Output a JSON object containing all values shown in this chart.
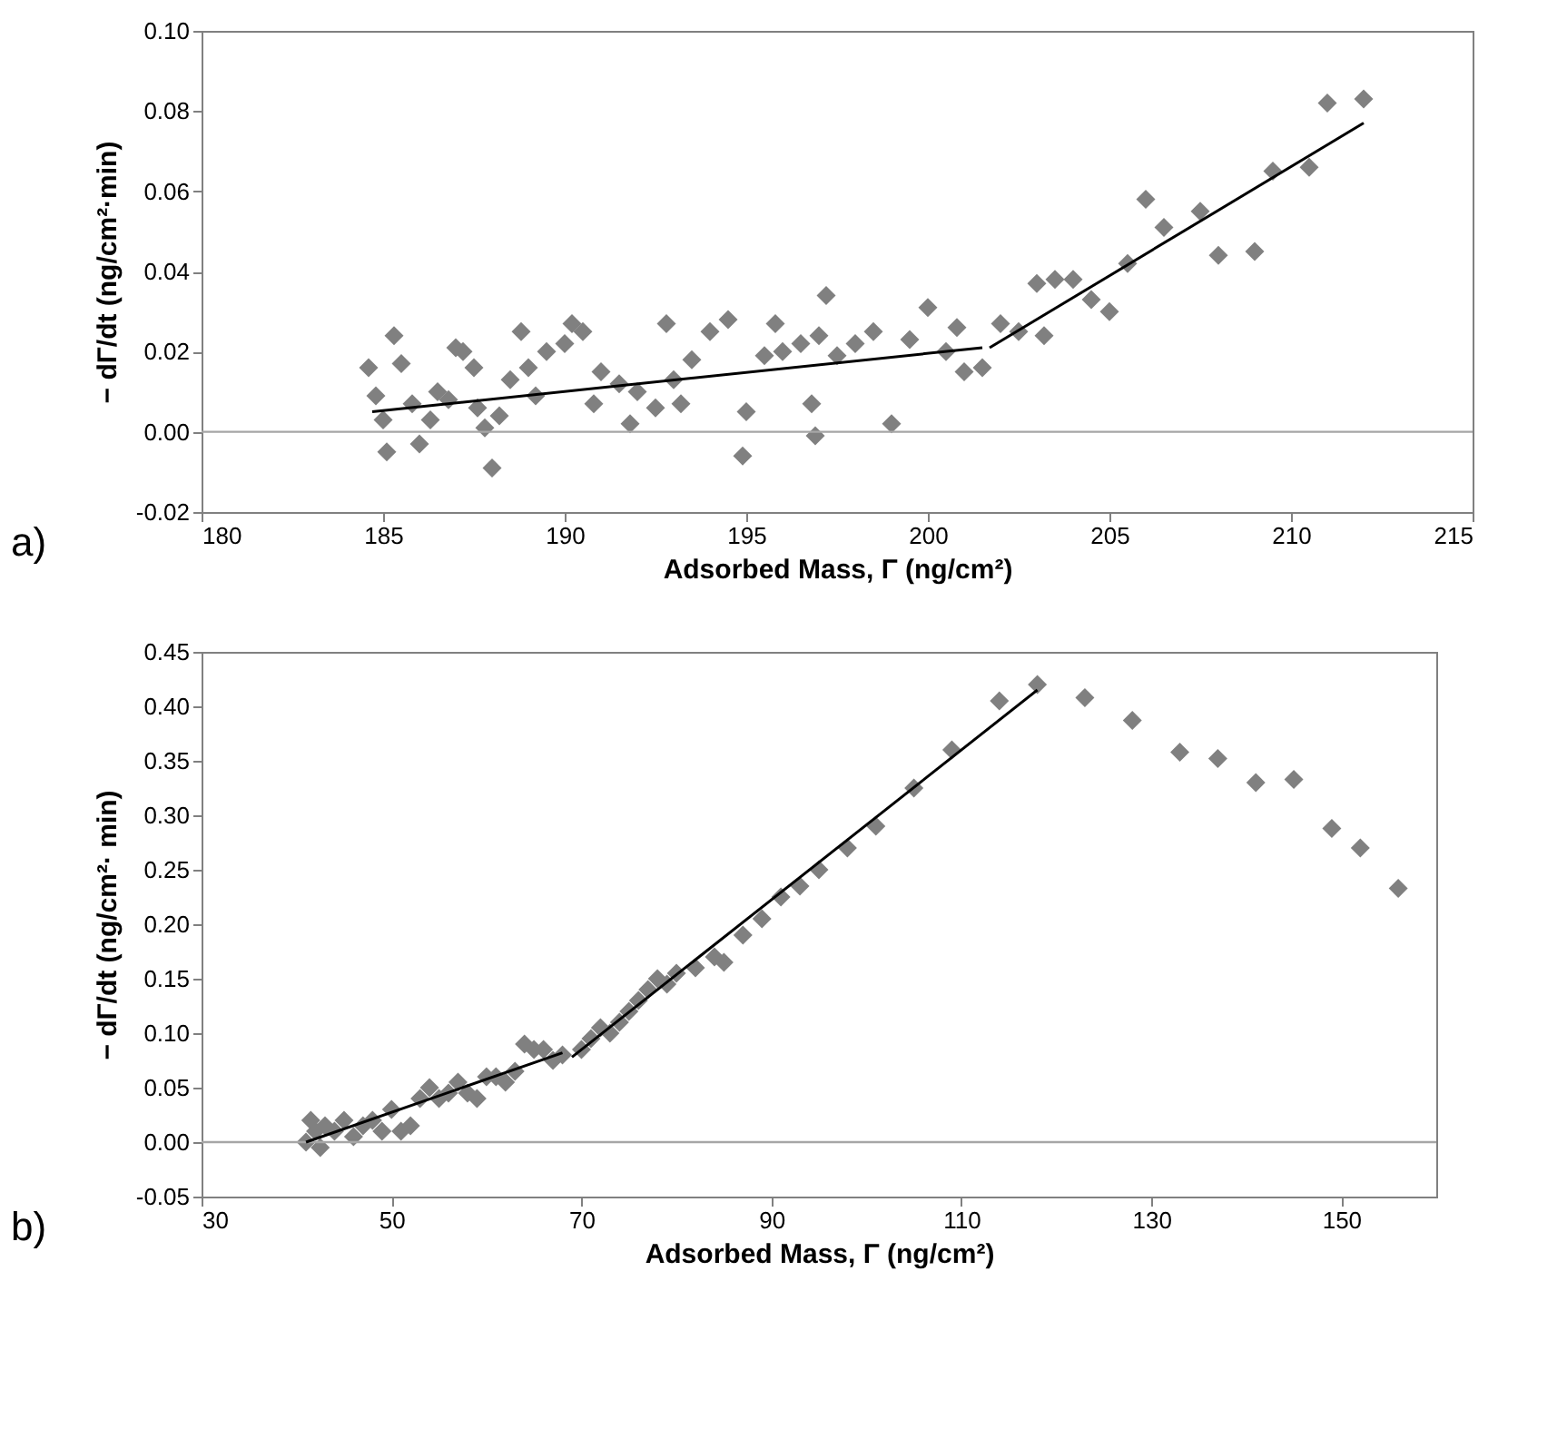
{
  "chart_data": [
    {
      "type": "scatter",
      "xlabel": "Adsorbed Mass, Γ (ng/cm²)",
      "ylabel": "− dΓ/dt (ng/cm²·min)",
      "annotations": [
        "a)"
      ],
      "xlim": [
        180,
        215
      ],
      "xticks": [
        180,
        185,
        190,
        195,
        200,
        205,
        210,
        215
      ],
      "ylim": [
        -0.02,
        0.1
      ],
      "yticks": [
        {
          "value": -0.02,
          "label": "-0.02"
        },
        {
          "value": 0,
          "label": "0.00"
        },
        {
          "value": 0.02,
          "label": "0.02"
        },
        {
          "value": 0.04,
          "label": "0.04"
        },
        {
          "value": 0.06,
          "label": "0.06"
        },
        {
          "value": 0.08,
          "label": "0.08"
        },
        {
          "value": 0.1,
          "label": "0.10"
        }
      ],
      "grid": false,
      "ref_lines": [
        {
          "axis": "y",
          "value": 0,
          "label": null,
          "color": "#a6a6a6"
        }
      ],
      "series": [
        {
          "type": "scatter",
          "marker": "diamond",
          "color": "#808080",
          "x": [
            211,
            212,
            210.5,
            209.5,
            207.5,
            206.5,
            206,
            208,
            209,
            205.5,
            204.5,
            205,
            204,
            203.5,
            203,
            202.5,
            203.2,
            202,
            201.5,
            201,
            200.5,
            200.8,
            200,
            199.5,
            199,
            198.5,
            198,
            197.5,
            197.2,
            197,
            196.5,
            196,
            195.8,
            195.5,
            195,
            194.9,
            194.5,
            194,
            193.5,
            193,
            192.8,
            192.5,
            192,
            191.8,
            191.5,
            191,
            190.8,
            190.5,
            190.2,
            190,
            189.5,
            189,
            188.8,
            188.5,
            188.2,
            188,
            187.8,
            187.5,
            187.2,
            187,
            186.5,
            186.3,
            186,
            185.8,
            185.5,
            185.3,
            185,
            185.1,
            184.8,
            184.6,
            186.8,
            187.6,
            189.2,
            193.2,
            196.8,
            196.9
          ],
          "values": [
            0.082,
            0.083,
            0.066,
            0.065,
            0.055,
            0.051,
            0.058,
            0.044,
            0.045,
            0.042,
            0.033,
            0.03,
            0.038,
            0.038,
            0.037,
            0.025,
            0.024,
            0.027,
            0.016,
            0.015,
            0.02,
            0.026,
            0.031,
            0.023,
            0.002,
            0.025,
            0.022,
            0.019,
            0.034,
            0.024,
            0.022,
            0.02,
            0.027,
            0.019,
            0.005,
            -0.006,
            0.028,
            0.025,
            0.018,
            0.013,
            0.027,
            0.006,
            0.01,
            0.002,
            0.012,
            0.015,
            0.007,
            0.025,
            0.027,
            0.022,
            0.02,
            0.016,
            0.025,
            0.013,
            0.004,
            -0.009,
            0.001,
            0.016,
            0.02,
            0.021,
            0.01,
            0.003,
            -0.003,
            0.007,
            0.017,
            0.024,
            0.003,
            -0.005,
            0.009,
            0.016,
            0.008,
            0.006,
            0.009,
            0.007,
            0.007,
            -0.001
          ]
        },
        {
          "type": "line",
          "marker": "none",
          "color": "#000000",
          "x": [
            184.7,
            201.5
          ],
          "values": [
            0.005,
            0.021
          ]
        },
        {
          "type": "line",
          "marker": "none",
          "color": "#000000",
          "x": [
            201.7,
            212
          ],
          "values": [
            0.021,
            0.077
          ]
        }
      ]
    },
    {
      "type": "scatter",
      "xlabel": "Adsorbed Mass, Γ (ng/cm²)",
      "ylabel": "− dΓ/dt (ng/cm²· min)",
      "annotations": [
        "b)"
      ],
      "xlim": [
        30,
        160
      ],
      "xticks": [
        30,
        50,
        70,
        90,
        110,
        130,
        150
      ],
      "ylim": [
        -0.05,
        0.45
      ],
      "yticks": [
        {
          "value": -0.05,
          "label": "-0.05"
        },
        {
          "value": 0,
          "label": "0.00"
        },
        {
          "value": 0.05,
          "label": "0.05"
        },
        {
          "value": 0.1,
          "label": "0.10"
        },
        {
          "value": 0.15,
          "label": "0.15"
        },
        {
          "value": 0.2,
          "label": "0.20"
        },
        {
          "value": 0.25,
          "label": "0.25"
        },
        {
          "value": 0.3,
          "label": "0.30"
        },
        {
          "value": 0.35,
          "label": "0.35"
        },
        {
          "value": 0.4,
          "label": "0.40"
        },
        {
          "value": 0.45,
          "label": "0.45"
        }
      ],
      "grid": false,
      "ref_lines": [
        {
          "axis": "y",
          "value": 0,
          "label": null,
          "color": "#a6a6a6"
        }
      ],
      "series": [
        {
          "type": "scatter",
          "marker": "diamond",
          "color": "#808080",
          "x": [
            41,
            41.5,
            42,
            42.5,
            43,
            44,
            45,
            46,
            47,
            48,
            49,
            50,
            51,
            52,
            53,
            54,
            55,
            56,
            57,
            58,
            59,
            60,
            61,
            62,
            63,
            64,
            65,
            66,
            67,
            68,
            70,
            71,
            72,
            73,
            74,
            75,
            76,
            77,
            78,
            79,
            80,
            82,
            84,
            85,
            87,
            89,
            91,
            93,
            95,
            98,
            101,
            105,
            109,
            114,
            118,
            123,
            128,
            133,
            137,
            141,
            145,
            149,
            152,
            156
          ],
          "values": [
            0.0,
            0.02,
            0.01,
            -0.005,
            0.015,
            0.01,
            0.02,
            0.005,
            0.015,
            0.02,
            0.01,
            0.03,
            0.01,
            0.015,
            0.04,
            0.05,
            0.04,
            0.045,
            0.055,
            0.045,
            0.04,
            0.06,
            0.06,
            0.055,
            0.065,
            0.09,
            0.085,
            0.085,
            0.075,
            0.08,
            0.085,
            0.095,
            0.105,
            0.1,
            0.11,
            0.12,
            0.13,
            0.14,
            0.15,
            0.145,
            0.155,
            0.16,
            0.17,
            0.165,
            0.19,
            0.205,
            0.225,
            0.235,
            0.25,
            0.27,
            0.29,
            0.325,
            0.36,
            0.405,
            0.42,
            0.408,
            0.387,
            0.358,
            0.352,
            0.33,
            0.333,
            0.288,
            0.27,
            0.233
          ]
        },
        {
          "type": "line",
          "marker": "none",
          "color": "#000000",
          "x": [
            41,
            68
          ],
          "values": [
            0.0,
            0.082
          ]
        },
        {
          "type": "line",
          "marker": "none",
          "color": "#000000",
          "x": [
            69,
            118
          ],
          "values": [
            0.078,
            0.415
          ]
        }
      ]
    }
  ]
}
